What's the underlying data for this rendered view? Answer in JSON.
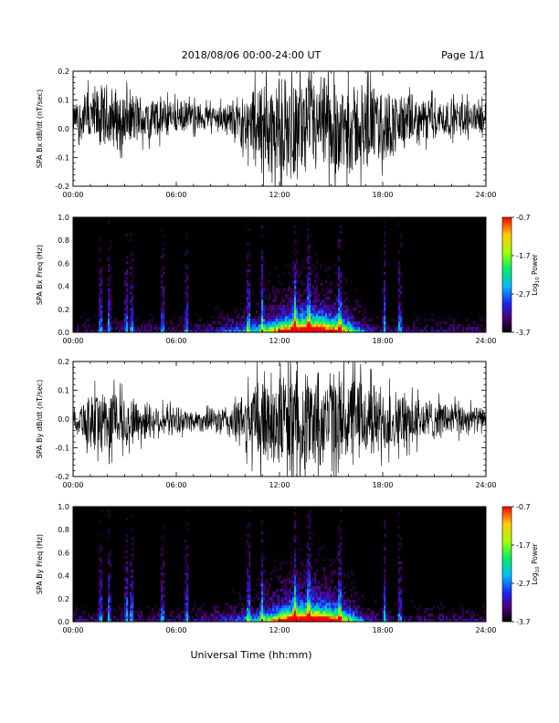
{
  "header": {
    "title": "2018/08/06  00:00-24:00 UT",
    "page": "Page 1/1"
  },
  "x_axis_label": "Universal Time (hh:mm)",
  "chart_data": [
    {
      "type": "line",
      "ylabel": "SPA Bx dB/dt (nT/sec)",
      "xlim": [
        "00:00",
        "24:00"
      ],
      "ylim": [
        -0.2,
        0.2
      ],
      "xticks": [
        "00:00",
        "06:00",
        "12:00",
        "18:00",
        "24:00"
      ],
      "yticks": [
        "-0.2",
        "-0.1",
        "0.0",
        "0.1",
        "0.2"
      ],
      "envelope": {
        "hours": [
          0,
          1,
          2,
          3,
          4,
          5,
          6,
          7,
          8,
          9,
          10,
          11,
          12,
          13,
          14,
          15,
          16,
          17,
          18,
          19,
          20,
          21,
          22,
          23,
          24
        ],
        "upper": [
          0.09,
          0.16,
          0.17,
          0.15,
          0.13,
          0.12,
          0.11,
          0.1,
          0.09,
          0.1,
          0.14,
          0.2,
          0.2,
          0.2,
          0.2,
          0.2,
          0.19,
          0.18,
          0.16,
          0.14,
          0.12,
          0.12,
          0.11,
          0.11,
          0.1
        ],
        "lower": [
          -0.02,
          -0.09,
          -0.1,
          -0.08,
          -0.06,
          -0.05,
          -0.03,
          -0.02,
          -0.01,
          -0.03,
          -0.09,
          -0.2,
          -0.2,
          -0.2,
          -0.2,
          -0.2,
          -0.19,
          -0.17,
          -0.14,
          -0.1,
          -0.07,
          -0.05,
          -0.04,
          -0.03,
          -0.02
        ]
      }
    },
    {
      "type": "heatmap",
      "ylabel": "SPA Bx Freq (Hz)",
      "xlim": [
        "00:00",
        "24:00"
      ],
      "ylim": [
        0.0,
        1.0
      ],
      "xticks": [
        "00:00",
        "06:00",
        "12:00",
        "18:00",
        "24:00"
      ],
      "yticks": [
        "0.0",
        "0.2",
        "0.4",
        "0.6",
        "0.8",
        "1.0"
      ],
      "colorbar": {
        "label_base": "Log",
        "label_sub": "10",
        "label_rest": " Power",
        "ticks": [
          "-0.7",
          "-1.7",
          "-2.7",
          "-3.7"
        ],
        "range": [
          -3.7,
          -0.7
        ]
      },
      "activity_peak_hours": [
        12.5,
        14.0,
        15.5
      ],
      "band_hours": [
        1.6,
        2.1,
        3.1,
        3.4,
        5.2,
        6.6,
        10.2,
        11.0,
        12.9,
        13.7,
        15.5,
        18.1,
        19.0
      ]
    },
    {
      "type": "line",
      "ylabel": "SPA By dB/dt (nT/sec)",
      "xlim": [
        "00:00",
        "24:00"
      ],
      "ylim": [
        -0.2,
        0.2
      ],
      "xticks": [
        "00:00",
        "06:00",
        "12:00",
        "18:00",
        "24:00"
      ],
      "yticks": [
        "-0.2",
        "-0.1",
        "0.0",
        "0.1",
        "0.2"
      ],
      "envelope": {
        "hours": [
          0,
          1,
          2,
          3,
          4,
          5,
          6,
          7,
          8,
          9,
          10,
          11,
          12,
          13,
          14,
          15,
          16,
          17,
          18,
          19,
          20,
          21,
          22,
          23,
          24
        ],
        "upper": [
          0.04,
          0.11,
          0.13,
          0.1,
          0.08,
          0.06,
          0.05,
          0.04,
          0.04,
          0.06,
          0.11,
          0.2,
          0.2,
          0.2,
          0.2,
          0.2,
          0.18,
          0.16,
          0.13,
          0.11,
          0.09,
          0.08,
          0.07,
          0.06,
          0.04
        ],
        "lower": [
          -0.04,
          -0.12,
          -0.14,
          -0.11,
          -0.09,
          -0.07,
          -0.06,
          -0.05,
          -0.05,
          -0.08,
          -0.13,
          -0.2,
          -0.2,
          -0.2,
          -0.2,
          -0.2,
          -0.19,
          -0.17,
          -0.14,
          -0.12,
          -0.1,
          -0.08,
          -0.07,
          -0.06,
          -0.04
        ]
      }
    },
    {
      "type": "heatmap",
      "ylabel": "SPA By Freq (Hz)",
      "xlim": [
        "00:00",
        "24:00"
      ],
      "ylim": [
        0.0,
        1.0
      ],
      "xticks": [
        "00:00",
        "06:00",
        "12:00",
        "18:00",
        "24:00"
      ],
      "yticks": [
        "0.0",
        "0.2",
        "0.4",
        "0.6",
        "0.8",
        "1.0"
      ],
      "colorbar": {
        "label_base": "Log",
        "label_sub": "10",
        "label_rest": " Power",
        "ticks": [
          "-0.7",
          "-1.7",
          "-2.7",
          "-3.7"
        ],
        "range": [
          -3.7,
          -0.7
        ]
      },
      "activity_peak_hours": [
        12.5,
        14.0,
        15.5
      ],
      "band_hours": [
        1.6,
        2.1,
        3.1,
        3.4,
        5.2,
        6.6,
        10.2,
        11.0,
        12.9,
        13.7,
        15.5,
        18.1,
        19.0
      ]
    }
  ]
}
